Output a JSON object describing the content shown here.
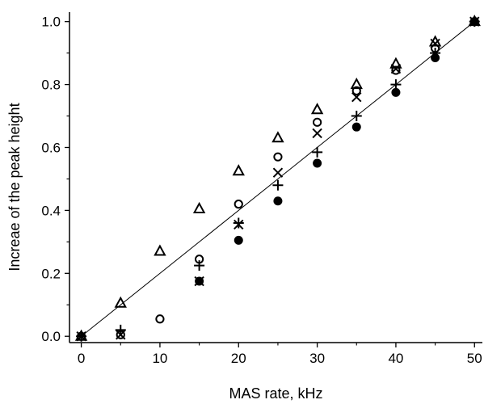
{
  "chart_data": {
    "type": "scatter",
    "title": "",
    "xlabel": "MAS rate, kHz",
    "ylabel": "Increae of the peak height",
    "xlim": [
      -1.5,
      51
    ],
    "ylim": [
      -0.02,
      1.03
    ],
    "xticks": [
      0,
      10,
      20,
      30,
      40,
      50
    ],
    "xtick_labels": [
      "0",
      "10",
      "20",
      "30",
      "40",
      "50"
    ],
    "yticks": [
      0.0,
      0.2,
      0.4,
      0.6,
      0.8,
      1.0
    ],
    "ytick_labels": [
      "0.0",
      "0.2",
      "0.4",
      "0.6",
      "0.8",
      "1.0"
    ],
    "grid": false,
    "legend": "none",
    "reference_line": {
      "x": [
        0,
        50
      ],
      "y": [
        0,
        1.0
      ],
      "style": "solid"
    },
    "series": [
      {
        "marker": "triangle-open",
        "x": [
          0,
          5,
          10,
          15,
          20,
          25,
          30,
          35,
          40,
          45,
          50
        ],
        "y": [
          0.0,
          0.105,
          0.27,
          0.405,
          0.525,
          0.63,
          0.72,
          0.8,
          0.865,
          0.935,
          1.0
        ]
      },
      {
        "marker": "circle-open",
        "x": [
          0,
          5,
          10,
          15,
          20,
          25,
          30,
          35,
          40,
          45,
          50
        ],
        "y": [
          0.0,
          0.005,
          0.055,
          0.245,
          0.42,
          0.57,
          0.68,
          0.78,
          0.845,
          0.915,
          1.0
        ]
      },
      {
        "marker": "x",
        "x": [
          0,
          5,
          15,
          20,
          25,
          30,
          35,
          40,
          45,
          50
        ],
        "y": [
          0.0,
          0.005,
          0.175,
          0.355,
          0.52,
          0.645,
          0.76,
          0.85,
          0.93,
          1.0
        ]
      },
      {
        "marker": "plus",
        "x": [
          0,
          5,
          15,
          20,
          25,
          30,
          35,
          40,
          45,
          50
        ],
        "y": [
          0.0,
          0.02,
          0.225,
          0.36,
          0.48,
          0.585,
          0.7,
          0.8,
          0.9,
          1.0
        ]
      },
      {
        "marker": "circle-filled",
        "x": [
          15,
          20,
          25,
          30,
          35,
          40,
          45,
          50
        ],
        "y": [
          0.175,
          0.305,
          0.43,
          0.55,
          0.665,
          0.775,
          0.885,
          1.0
        ]
      }
    ]
  }
}
